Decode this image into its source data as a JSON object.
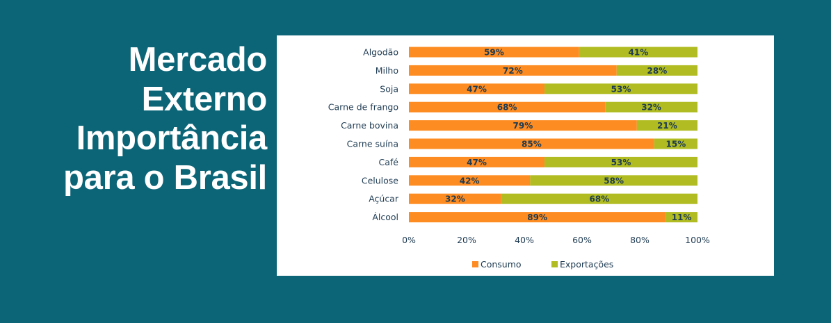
{
  "title": {
    "lines": [
      "Mercado",
      "Externo",
      "Importância",
      "para o Brasil"
    ]
  },
  "colors": {
    "background": "#0c6577",
    "consumo": "#fd8c22",
    "exportacoes": "#b0bc22",
    "text": "#1e3b52"
  },
  "chart_data": {
    "type": "bar",
    "orientation": "horizontal",
    "stacked": "percent",
    "categories": [
      "Algodão",
      "Milho",
      "Soja",
      "Carne de frango",
      "Carne bovina",
      "Carne suína",
      "Café",
      "Celulose",
      "Açúcar",
      "Álcool"
    ],
    "series": [
      {
        "name": "Consumo",
        "values": [
          59,
          72,
          47,
          68,
          79,
          85,
          47,
          42,
          32,
          89
        ],
        "labels": [
          "59%",
          "72%",
          "47%",
          "68%",
          "79%",
          "85%",
          "47%",
          "42%",
          "32%",
          "89%"
        ]
      },
      {
        "name": "Exportações",
        "values": [
          41,
          28,
          53,
          32,
          21,
          15,
          53,
          58,
          68,
          11
        ],
        "labels": [
          "41%",
          "28%",
          "53%",
          "32%",
          "21%",
          "15%",
          "53%",
          "58%",
          "68%",
          "11%"
        ]
      }
    ],
    "xlim": [
      0,
      100
    ],
    "xticks": [
      "0%",
      "20%",
      "40%",
      "60%",
      "80%",
      "100%"
    ],
    "grid": false,
    "legend": "bottom"
  }
}
